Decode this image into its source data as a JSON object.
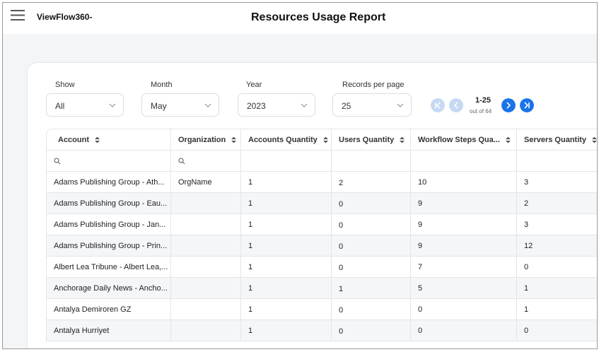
{
  "header": {
    "app_name": "ViewFlow360-",
    "title": "Resources Usage Report"
  },
  "filters": [
    {
      "label": "Show",
      "value": "All"
    },
    {
      "label": "Month",
      "value": "May"
    },
    {
      "label": "Year",
      "value": "2023"
    },
    {
      "label": "Records per page",
      "value": "25"
    }
  ],
  "pagination": {
    "range": "1-25",
    "total": "out of 64"
  },
  "table": {
    "columns": [
      "Account",
      "Organization",
      "Accounts Quantity",
      "Users Quantity",
      "Workflow Steps Qua...",
      "Servers Quantity"
    ],
    "rows": [
      [
        "Adams Publishing Group - Ath...",
        "OrgName",
        "1",
        "2",
        "10",
        "3"
      ],
      [
        "Adams Publishing Group - Eau...",
        "",
        "1",
        "0",
        "9",
        "2"
      ],
      [
        "Adams Publishing Group - Jan...",
        "",
        "1",
        "0",
        "9",
        "3"
      ],
      [
        "Adams Publishing Group - Prin...",
        "",
        "1",
        "0",
        "9",
        "12"
      ],
      [
        "Albert Lea Tribune - Albert Lea,...",
        "",
        "1",
        "0",
        "7",
        "0"
      ],
      [
        "Anchorage Daily News - Ancho...",
        "",
        "1",
        "1",
        "5",
        "1"
      ],
      [
        "Antalya Demiroren GZ",
        "",
        "1",
        "0",
        "0",
        "1"
      ],
      [
        "Antalya Hurriyet",
        "",
        "1",
        "0",
        "0",
        "0"
      ]
    ]
  }
}
